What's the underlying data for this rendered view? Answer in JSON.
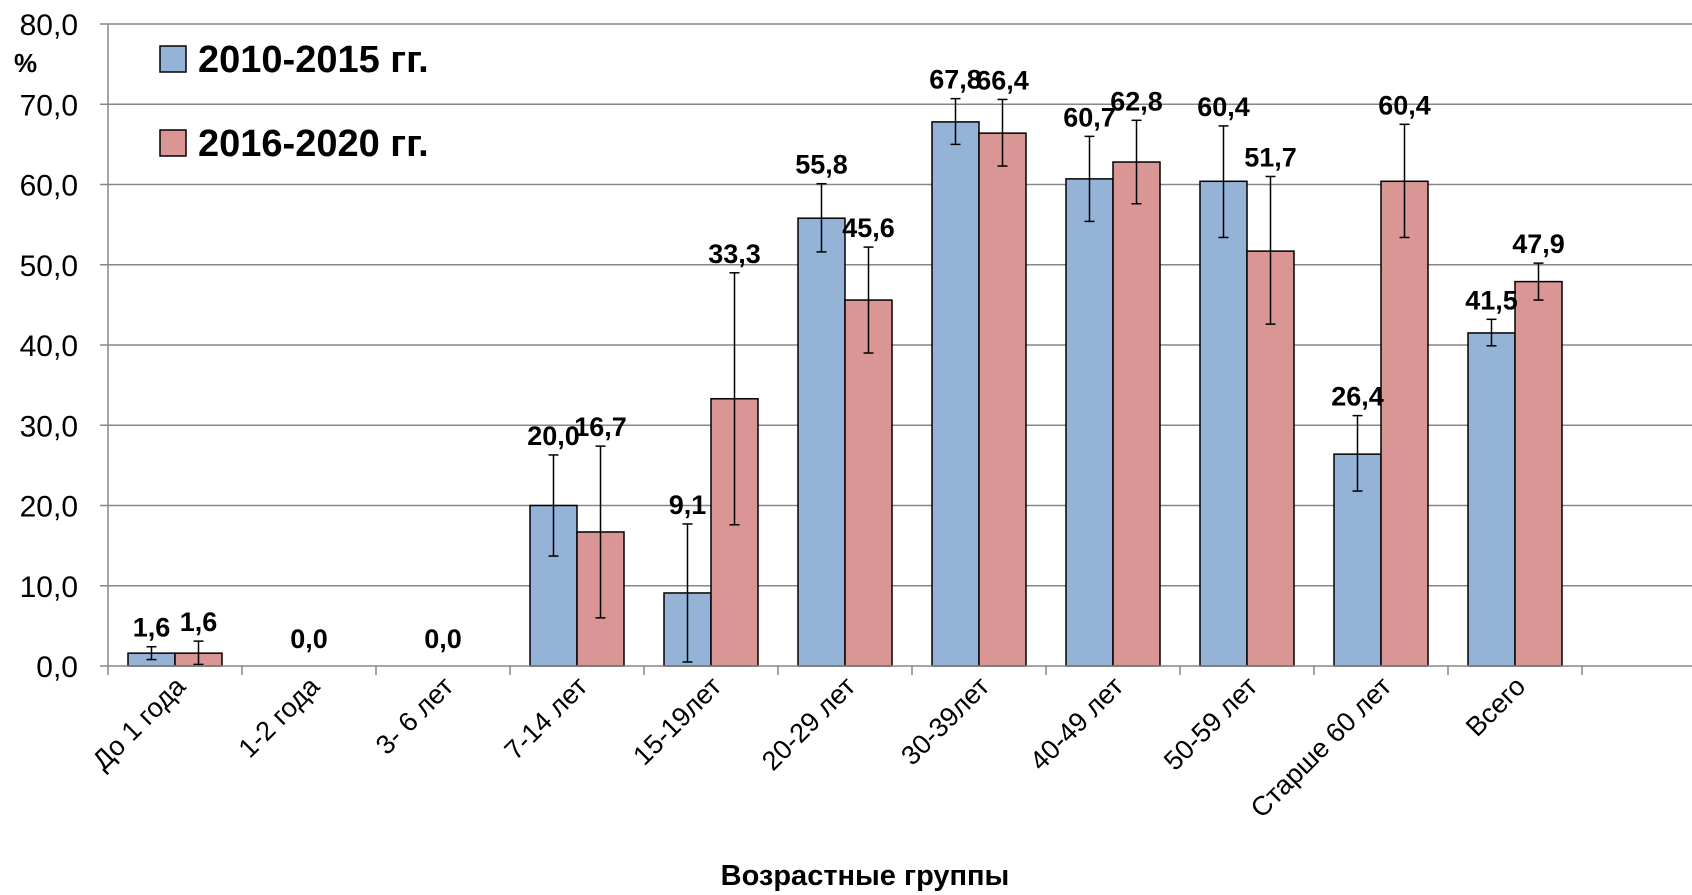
{
  "chart_data": {
    "type": "bar",
    "title": "",
    "xlabel": "Возрастные группы",
    "ylabel": "%",
    "ylim": [
      0,
      80
    ],
    "ytick_step": 10,
    "ytick_labels": [
      "0,0",
      "10,0",
      "20,0",
      "30,0",
      "40,0",
      "50,0",
      "60,0",
      "70,0",
      "80,0"
    ],
    "grid": true,
    "legend_position": "top-left",
    "categories": [
      "До 1 года",
      "1-2 года",
      "3- 6 лет",
      "7-14 лет",
      "15-19лет",
      "20-29 лет",
      "30-39лет",
      "40-49 лет",
      "50-59 лет",
      "Старше 60 лет",
      "Всего"
    ],
    "series": [
      {
        "name": "2010-2015 гг.",
        "color": "#95b3d7",
        "values": [
          1.6,
          0.0,
          0.0,
          20.0,
          9.1,
          55.8,
          67.8,
          60.7,
          60.4,
          26.4,
          41.5
        ],
        "labels": [
          "1,6",
          "0,0",
          "0,0",
          "20,0",
          "9,1",
          "55,8",
          "67,8",
          "60,7",
          "60,4",
          "26,4",
          "41,5"
        ],
        "error_low": [
          0.8,
          null,
          null,
          13.7,
          0.5,
          51.6,
          65.0,
          55.4,
          53.4,
          21.8,
          39.9
        ],
        "error_high": [
          2.4,
          null,
          null,
          26.3,
          17.7,
          60.1,
          70.7,
          66.0,
          67.3,
          31.2,
          43.2
        ]
      },
      {
        "name": "2016-2020 гг.",
        "color": "#d99694",
        "values": [
          1.6,
          0.0,
          0.0,
          16.7,
          33.3,
          45.6,
          66.4,
          62.8,
          51.7,
          60.4,
          47.9
        ],
        "labels": [
          "1,6",
          "0,0",
          "0,0",
          "16,7",
          "33,3",
          "45,6",
          "66,4",
          "62,8",
          "51,7",
          "60,4",
          "47,9"
        ],
        "error_low": [
          0.2,
          null,
          null,
          6.0,
          17.6,
          39.0,
          62.3,
          57.6,
          42.6,
          53.4,
          45.6
        ],
        "error_high": [
          3.1,
          null,
          null,
          27.4,
          49.0,
          52.2,
          70.6,
          68.0,
          61.0,
          67.5,
          50.2
        ]
      }
    ]
  }
}
